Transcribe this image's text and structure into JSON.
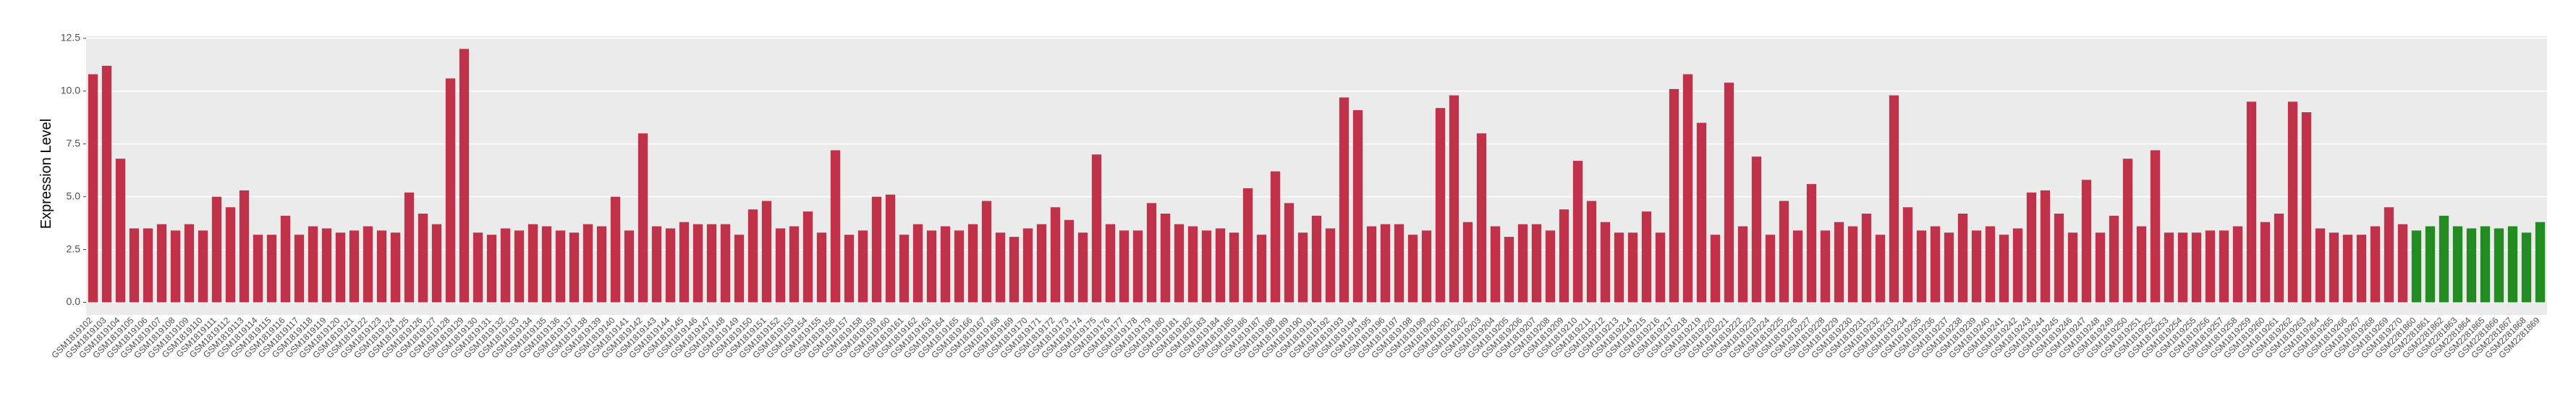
{
  "chart_data": {
    "type": "bar",
    "y_label": "Expression Level",
    "categories": [
      "GSM1819102",
      "GSM1819103",
      "GSM1819104",
      "GSM1819105",
      "GSM1819106",
      "GSM1819107",
      "GSM1819108",
      "GSM1819109",
      "GSM1819110",
      "GSM1819111",
      "GSM1819112",
      "GSM1819113",
      "GSM1819114",
      "GSM1819115",
      "GSM1819116",
      "GSM1819117",
      "GSM1819118",
      "GSM1819119",
      "GSM1819120",
      "GSM1819121",
      "GSM1819122",
      "GSM1819123",
      "GSM1819124",
      "GSM1819125",
      "GSM1819126",
      "GSM1819127",
      "GSM1819128",
      "GSM1819129",
      "GSM1819130",
      "GSM1819131",
      "GSM1819132",
      "GSM1819133",
      "GSM1819134",
      "GSM1819135",
      "GSM1819136",
      "GSM1819137",
      "GSM1819138",
      "GSM1819139",
      "GSM1819140",
      "GSM1819141",
      "GSM1819142",
      "GSM1819143",
      "GSM1819144",
      "GSM1819145",
      "GSM1819146",
      "GSM1819147",
      "GSM1819148",
      "GSM1819149",
      "GSM1819150",
      "GSM1819151",
      "GSM1819152",
      "GSM1819153",
      "GSM1819154",
      "GSM1819155",
      "GSM1819156",
      "GSM1819157",
      "GSM1819158",
      "GSM1819159",
      "GSM1819160",
      "GSM1819161",
      "GSM1819162",
      "GSM1819163",
      "GSM1819164",
      "GSM1819165",
      "GSM1819166",
      "GSM1819167",
      "GSM1819168",
      "GSM1819169",
      "GSM1819170",
      "GSM1819171",
      "GSM1819172",
      "GSM1819173",
      "GSM1819174",
      "GSM1819175",
      "GSM1819176",
      "GSM1819177",
      "GSM1819178",
      "GSM1819179",
      "GSM1819180",
      "GSM1819181",
      "GSM1819182",
      "GSM1819183",
      "GSM1819184",
      "GSM1819185",
      "GSM1819186",
      "GSM1819187",
      "GSM1819188",
      "GSM1819189",
      "GSM1819190",
      "GSM1819191",
      "GSM1819192",
      "GSM1819193",
      "GSM1819194",
      "GSM1819195",
      "GSM1819196",
      "GSM1819197",
      "GSM1819198",
      "GSM1819199",
      "GSM1819200",
      "GSM1819201",
      "GSM1819202",
      "GSM1819203",
      "GSM1819204",
      "GSM1819205",
      "GSM1819206",
      "GSM1819207",
      "GSM1819208",
      "GSM1819209",
      "GSM1819210",
      "GSM1819211",
      "GSM1819212",
      "GSM1819213",
      "GSM1819214",
      "GSM1819215",
      "GSM1819216",
      "GSM1819217",
      "GSM1819218",
      "GSM1819219",
      "GSM1819220",
      "GSM1819221",
      "GSM1819222",
      "GSM1819223",
      "GSM1819224",
      "GSM1819225",
      "GSM1819226",
      "GSM1819227",
      "GSM1819228",
      "GSM1819229",
      "GSM1819230",
      "GSM1819231",
      "GSM1819232",
      "GSM1819233",
      "GSM1819234",
      "GSM1819235",
      "GSM1819236",
      "GSM1819237",
      "GSM1819238",
      "GSM1819239",
      "GSM1819240",
      "GSM1819241",
      "GSM1819242",
      "GSM1819243",
      "GSM1819244",
      "GSM1819245",
      "GSM1819246",
      "GSM1819247",
      "GSM1819248",
      "GSM1819249",
      "GSM1819250",
      "GSM1819251",
      "GSM1819252",
      "GSM1819253",
      "GSM1819254",
      "GSM1819255",
      "GSM1819256",
      "GSM1819257",
      "GSM1819258",
      "GSM1819259",
      "GSM1819260",
      "GSM1819261",
      "GSM1819262",
      "GSM1819263",
      "GSM1819264",
      "GSM1819265",
      "GSM1819266",
      "GSM1819267",
      "GSM1819268",
      "GSM1819269",
      "GSM1819270",
      "GSM2281860",
      "GSM2281861",
      "GSM2281862",
      "GSM2281863",
      "GSM2281864",
      "GSM2281865",
      "GSM2281866",
      "GSM2281867",
      "GSM2281868",
      "GSM2281869"
    ],
    "series": [
      {
        "color": "#c0314a",
        "values": [
          10.8,
          11.2,
          6.8,
          3.5,
          3.5,
          3.7,
          3.4,
          3.7,
          3.4,
          5.0,
          4.5,
          5.3,
          3.2,
          3.2,
          4.1,
          3.2,
          3.6,
          3.5,
          3.3,
          3.4,
          3.6,
          3.4,
          3.3,
          5.2,
          4.2,
          3.7,
          10.6,
          12.0,
          3.3,
          3.2,
          3.5,
          3.4,
          3.7,
          3.6,
          3.4,
          3.3,
          3.7,
          3.6,
          5.0,
          3.4,
          8.0,
          3.6,
          3.5,
          3.8,
          3.7,
          3.7,
          3.7,
          3.2,
          4.4,
          4.8,
          3.5,
          3.6,
          4.3,
          3.3,
          7.2,
          3.2,
          3.4,
          5.0,
          5.1,
          3.2,
          3.7,
          3.4,
          3.6,
          3.4,
          3.7,
          4.8,
          3.3,
          3.1,
          3.5,
          3.7,
          4.5,
          3.9,
          3.3,
          7.0,
          3.7,
          3.4,
          3.4,
          4.7,
          4.2,
          3.7,
          3.6,
          3.4,
          3.5,
          3.3,
          5.4,
          3.2,
          6.2,
          4.7,
          3.3,
          4.1,
          3.5,
          9.7,
          9.1,
          3.6,
          3.7,
          3.7,
          3.2,
          3.4,
          9.2,
          9.8,
          3.8,
          8.0,
          3.6,
          3.1,
          3.7,
          3.7,
          3.4,
          4.4,
          6.7,
          4.8,
          3.8,
          3.3,
          3.3,
          4.3,
          3.3,
          10.1,
          10.8,
          8.5,
          3.2,
          10.4,
          3.6,
          6.9,
          3.2,
          4.8,
          3.4,
          5.6,
          3.4,
          3.8,
          3.6,
          4.2,
          3.2,
          9.8,
          4.5,
          3.4,
          3.6,
          3.3,
          4.2,
          3.4,
          3.6,
          3.2,
          3.5,
          5.2,
          5.3,
          4.2,
          3.3,
          5.8,
          3.3,
          4.1,
          6.8,
          3.6,
          7.2,
          3.3,
          3.3,
          3.3,
          3.4,
          3.4,
          3.6,
          9.5,
          3.8,
          4.2,
          9.5,
          9.0,
          3.5,
          3.3,
          3.2,
          3.2,
          3.6,
          4.5,
          3.7,
          null,
          null,
          null,
          null,
          null,
          null,
          null,
          null,
          null,
          null
        ]
      },
      {
        "color": "#228b22",
        "values": [
          null,
          null,
          null,
          null,
          null,
          null,
          null,
          null,
          null,
          null,
          null,
          null,
          null,
          null,
          null,
          null,
          null,
          null,
          null,
          null,
          null,
          null,
          null,
          null,
          null,
          null,
          null,
          null,
          null,
          null,
          null,
          null,
          null,
          null,
          null,
          null,
          null,
          null,
          null,
          null,
          null,
          null,
          null,
          null,
          null,
          null,
          null,
          null,
          null,
          null,
          null,
          null,
          null,
          null,
          null,
          null,
          null,
          null,
          null,
          null,
          null,
          null,
          null,
          null,
          null,
          null,
          null,
          null,
          null,
          null,
          null,
          null,
          null,
          null,
          null,
          null,
          null,
          null,
          null,
          null,
          null,
          null,
          null,
          null,
          null,
          null,
          null,
          null,
          null,
          null,
          null,
          null,
          null,
          null,
          null,
          null,
          null,
          null,
          null,
          null,
          null,
          null,
          null,
          null,
          null,
          null,
          null,
          null,
          null,
          null,
          null,
          null,
          null,
          null,
          null,
          null,
          null,
          null,
          null,
          null,
          null,
          null,
          null,
          null,
          null,
          null,
          null,
          null,
          null,
          null,
          null,
          null,
          null,
          null,
          null,
          null,
          null,
          null,
          null,
          null,
          null,
          null,
          null,
          null,
          null,
          null,
          null,
          null,
          null,
          null,
          null,
          null,
          null,
          null,
          null,
          null,
          null,
          null,
          null,
          null,
          null,
          null,
          null,
          null,
          null,
          null,
          null,
          null,
          null,
          3.4,
          3.6,
          4.1,
          3.6,
          3.5,
          3.6,
          3.5,
          3.6,
          3.3,
          3.8
        ]
      }
    ],
    "ylim": [
      -0.6,
      12.6
    ],
    "yticks": [
      {
        "value": 0,
        "label": "0.0"
      },
      {
        "value": 2.5,
        "label": "2.5"
      },
      {
        "value": 5,
        "label": "5.0"
      },
      {
        "value": 7.5,
        "label": "7.5"
      },
      {
        "value": 10,
        "label": "10.0"
      },
      {
        "value": 12.5,
        "label": "12.5"
      }
    ],
    "grid": true,
    "panel_color": "#ebebeb",
    "grid_color": "#ffffff"
  }
}
